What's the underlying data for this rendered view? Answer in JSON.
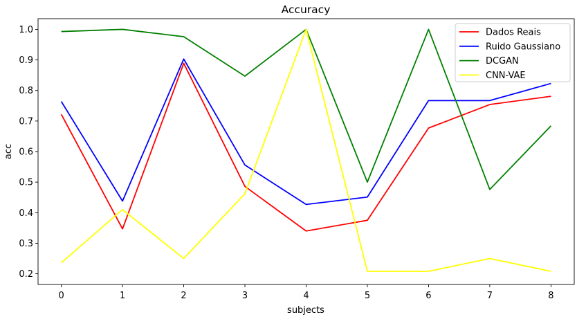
{
  "chart_data": {
    "type": "line",
    "title": "Accuracy",
    "xlabel": "subjects",
    "ylabel": "acc",
    "x": [
      0,
      1,
      2,
      3,
      4,
      5,
      6,
      7,
      8
    ],
    "xlim": [
      -0.38,
      8.38
    ],
    "ylim": [
      0.165,
      1.035
    ],
    "xticks": [
      0,
      1,
      2,
      3,
      4,
      5,
      6,
      7,
      8
    ],
    "yticks": [
      0.2,
      0.3,
      0.4,
      0.5,
      0.6,
      0.7,
      0.8,
      0.9,
      1.0
    ],
    "ytick_labels": [
      "0.2",
      "0.3",
      "0.4",
      "0.5",
      "0.6",
      "0.7",
      "0.8",
      "0.9",
      "1.0"
    ],
    "grid": false,
    "legend_position": "top-right",
    "series": [
      {
        "name": "Dados Reais",
        "color": "#ff0000",
        "values": [
          0.722,
          0.347,
          0.889,
          0.486,
          0.34,
          0.375,
          0.677,
          0.754,
          0.781
        ]
      },
      {
        "name": "Ruido Gaussiano",
        "color": "#0000ff",
        "values": [
          0.764,
          0.438,
          0.903,
          0.556,
          0.427,
          0.451,
          0.767,
          0.767,
          0.823
        ]
      },
      {
        "name": "DCGAN",
        "color": "#008000",
        "values": [
          0.993,
          1.0,
          0.976,
          0.847,
          1.0,
          0.5,
          1.0,
          0.476,
          0.684
        ]
      },
      {
        "name": "CNN-VAE",
        "color": "#ffff00",
        "values": [
          0.236,
          0.41,
          0.25,
          0.462,
          1.0,
          0.208,
          0.208,
          0.25,
          0.208
        ]
      }
    ]
  }
}
